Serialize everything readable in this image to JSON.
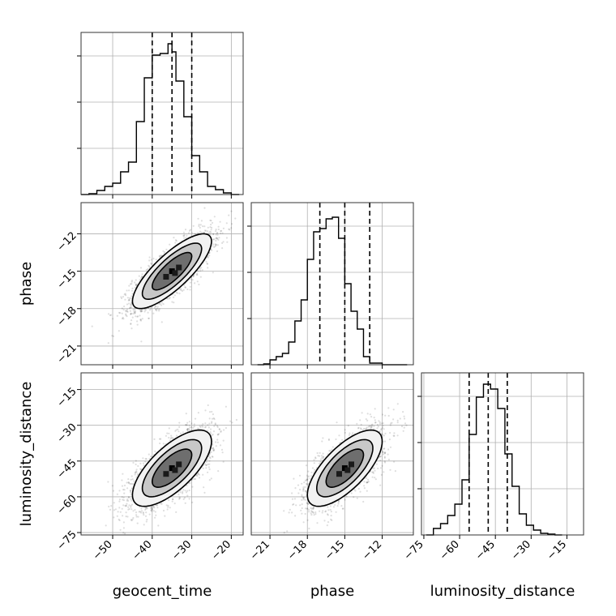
{
  "chart_data": {
    "type": "corner",
    "parameters": [
      "geocent_time",
      "phase",
      "luminosity_distance"
    ],
    "axes": {
      "geocent_time": {
        "label": "geocent_time",
        "range": [
          -58,
          -17
        ],
        "ticks": [
          -50,
          -40,
          -30,
          -20
        ],
        "tick_labels": [
          "−50",
          "−40",
          "−30",
          "−20"
        ],
        "quantiles": [
          -40,
          -35,
          -30
        ]
      },
      "phase": {
        "label": "phase",
        "range": [
          -22.5,
          -9.5
        ],
        "ticks": [
          -21,
          -18,
          -15,
          -12
        ],
        "tick_labels": [
          "−21",
          "−18",
          "−15",
          "−12"
        ],
        "quantiles": [
          -17,
          -15,
          -13
        ]
      },
      "luminosity_distance": {
        "label": "luminosity_distance",
        "range": [
          -76,
          -8
        ],
        "ticks": [
          -75,
          -60,
          -45,
          -30,
          -15
        ],
        "tick_labels": [
          "−75",
          "−60",
          "−45",
          "−30",
          "−15"
        ],
        "quantiles": [
          -56,
          -48,
          -40
        ]
      }
    },
    "histograms": {
      "geocent_time": {
        "bin_edges": [
          -58,
          -56,
          -54,
          -52,
          -50,
          -48,
          -46,
          -44,
          -42,
          -40,
          -38,
          -36,
          -35,
          -34,
          -32,
          -30,
          -28,
          -26,
          -24,
          -22,
          -20,
          -18
        ],
        "counts": [
          0.0,
          0.005,
          0.025,
          0.05,
          0.07,
          0.14,
          0.2,
          0.45,
          0.72,
          0.86,
          0.87,
          0.93,
          0.88,
          0.7,
          0.48,
          0.24,
          0.14,
          0.05,
          0.03,
          0.01,
          0.0
        ]
      },
      "phase": {
        "bin_edges": [
          -22.0,
          -21.5,
          -21.0,
          -20.5,
          -20.0,
          -19.5,
          -19.0,
          -18.5,
          -18.0,
          -17.5,
          -17.0,
          -16.5,
          -16.0,
          -15.5,
          -15.0,
          -14.5,
          -14.0,
          -13.5,
          -13.0,
          -12.5,
          -12.0,
          -11.5,
          -11.0,
          -10.5,
          -10.0
        ],
        "counts": [
          0.0,
          0.005,
          0.03,
          0.05,
          0.07,
          0.14,
          0.27,
          0.4,
          0.65,
          0.82,
          0.84,
          0.9,
          0.91,
          0.78,
          0.5,
          0.33,
          0.22,
          0.05,
          0.01,
          0.01,
          0.0,
          0.0,
          0.0,
          0.0
        ]
      },
      "luminosity_distance": {
        "bin_edges": [
          -74,
          -71,
          -68,
          -65,
          -62,
          -59,
          -56,
          -53,
          -50,
          -47,
          -44,
          -41,
          -38,
          -35,
          -32,
          -29,
          -26,
          -23,
          -20,
          -17
        ],
        "counts": [
          0.0,
          0.04,
          0.07,
          0.12,
          0.19,
          0.34,
          0.62,
          0.85,
          0.93,
          0.9,
          0.78,
          0.5,
          0.3,
          0.13,
          0.06,
          0.03,
          0.01,
          0.005,
          0.0
        ]
      }
    },
    "joint": [
      {
        "x": "geocent_time",
        "y": "phase",
        "center": [
          -35,
          -15
        ],
        "sd": [
          5,
          1.5
        ],
        "rho": 0.8
      },
      {
        "x": "geocent_time",
        "y": "luminosity_distance",
        "center": [
          -35,
          -48
        ],
        "sd": [
          5,
          8
        ],
        "rho": 0.7
      },
      {
        "x": "phase",
        "y": "luminosity_distance",
        "center": [
          -15,
          -48
        ],
        "sd": [
          1.5,
          8
        ],
        "rho": 0.7
      }
    ],
    "grid": true
  }
}
